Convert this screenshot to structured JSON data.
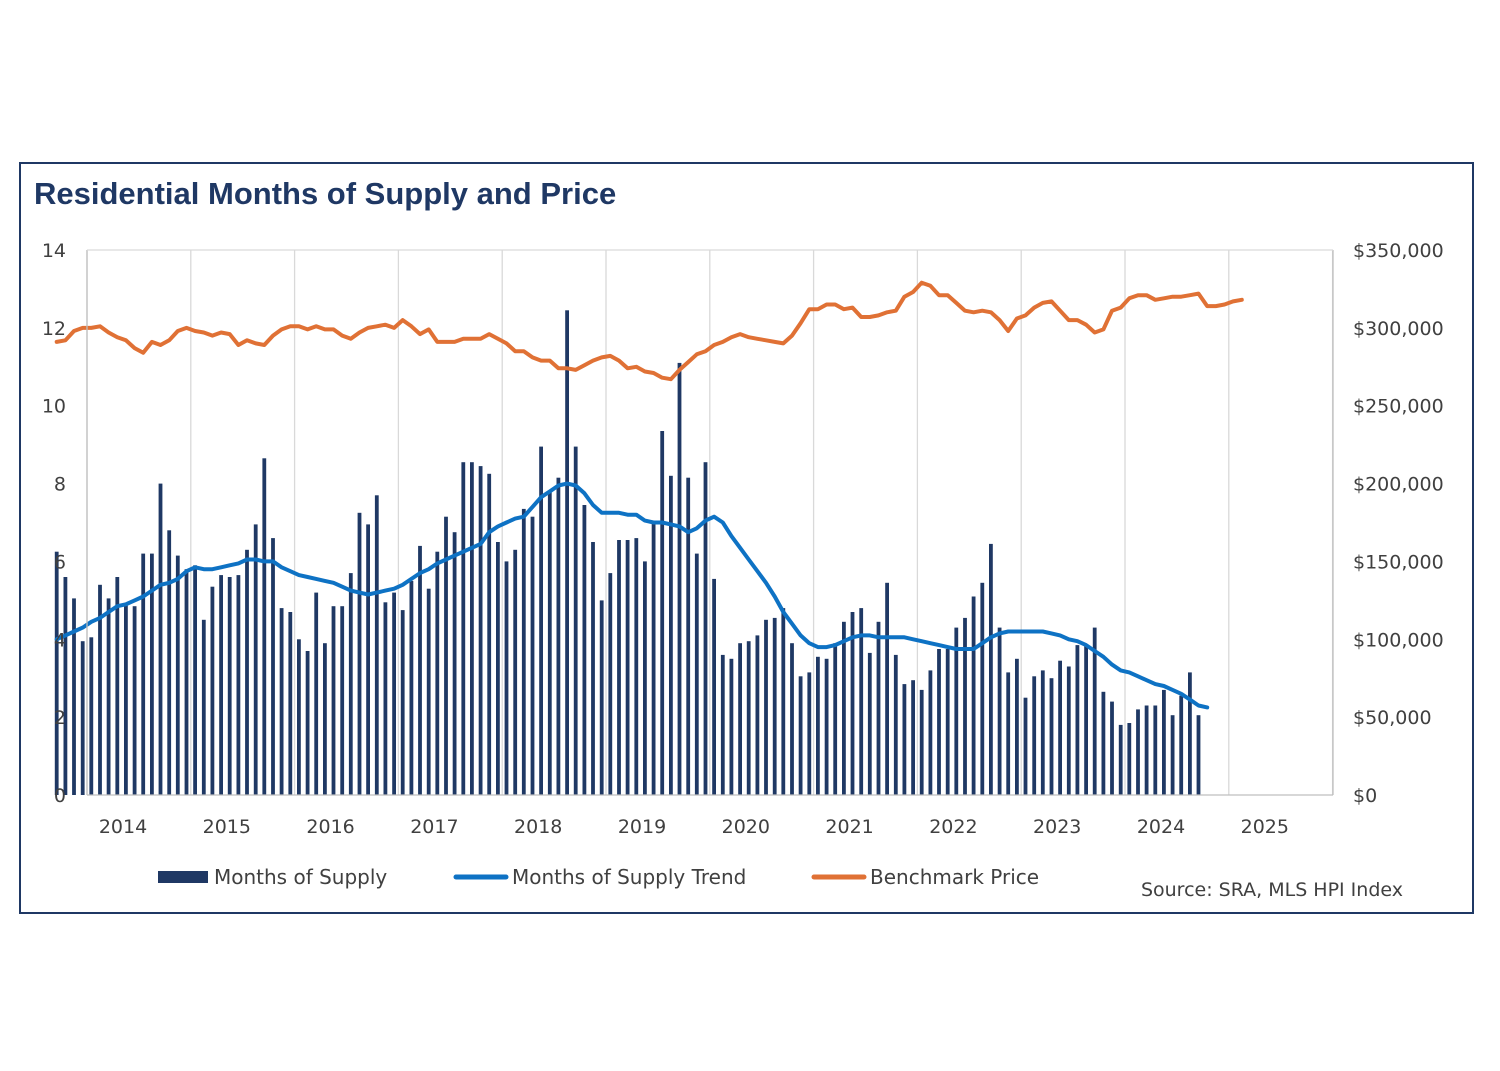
{
  "chart_data": {
    "type": "bar+line",
    "title": "Residential Months of Supply and Price",
    "source": "Source: SRA, MLS HPI Index",
    "start": {
      "year": 2013,
      "month": 9
    },
    "y_left": {
      "min": 0,
      "max": 14,
      "ticks": [
        "0",
        "2",
        "4",
        "6",
        "8",
        "10",
        "12",
        "14"
      ]
    },
    "y_right": {
      "min": 0,
      "max": 350000,
      "ticks": [
        "$0",
        "$50,000",
        "$100,000",
        "$150,000",
        "$200,000",
        "$250,000",
        "$300,000",
        "$350,000"
      ]
    },
    "x_ticks": [
      "2014",
      "2015",
      "2016",
      "2017",
      "2018",
      "2019",
      "2020",
      "2021",
      "2022",
      "2023",
      "2024",
      "2025"
    ],
    "legend": [
      "Months of Supply",
      "Months of Supply Trend",
      "Benchmark Price"
    ],
    "colors": {
      "bars": "#1f3864",
      "trend": "#0e72c4",
      "price": "#e07135",
      "grid": "#d9d9d9",
      "axis": "#bfbfbf"
    },
    "series": [
      {
        "name": "Months of Supply",
        "type": "bar",
        "values": [
          6.25,
          5.6,
          5.05,
          3.95,
          4.05,
          5.4,
          5.05,
          5.6,
          4.9,
          4.85,
          6.2,
          6.2,
          8.0,
          6.8,
          6.15,
          5.8,
          5.9,
          4.5,
          5.35,
          5.65,
          5.6,
          5.65,
          6.3,
          6.95,
          8.65,
          6.6,
          4.8,
          4.7,
          4.0,
          3.7,
          5.2,
          3.9,
          4.85,
          4.85,
          5.7,
          7.25,
          6.95,
          7.7,
          4.95,
          5.2,
          4.75,
          5.5,
          6.4,
          5.3,
          6.25,
          7.15,
          6.75,
          8.55,
          8.55,
          8.45,
          8.25,
          6.5,
          6.0,
          6.3,
          7.35,
          7.15,
          8.95,
          7.8,
          8.15,
          12.45,
          8.95,
          7.45,
          6.5,
          5.0,
          5.7,
          6.55,
          6.55,
          6.6,
          6.0,
          7.0,
          9.35,
          8.2,
          11.1,
          8.15,
          6.2,
          8.55,
          5.55,
          3.6,
          3.5,
          3.9,
          3.95,
          4.1,
          4.5,
          4.55,
          4.8,
          3.9,
          3.05,
          3.15,
          3.55,
          3.5,
          3.9,
          4.45,
          4.7,
          4.8,
          3.65,
          4.45,
          5.45,
          3.6,
          2.85,
          2.95,
          2.7,
          3.2,
          3.75,
          3.75,
          4.3,
          4.55,
          5.1,
          5.45,
          6.45,
          4.3,
          3.15,
          3.5,
          2.5,
          3.05,
          3.2,
          3.0,
          3.45,
          3.3,
          3.85,
          3.85,
          4.3,
          2.65,
          2.4,
          1.8,
          1.85,
          2.2,
          2.3,
          2.3,
          2.7,
          2.05,
          2.55,
          3.15,
          2.05
        ]
      },
      {
        "name": "Months of Supply Trend",
        "type": "line",
        "values": [
          4.0,
          4.1,
          4.2,
          4.3,
          4.45,
          4.55,
          4.7,
          4.85,
          4.9,
          5.0,
          5.1,
          5.25,
          5.4,
          5.45,
          5.55,
          5.75,
          5.85,
          5.8,
          5.8,
          5.85,
          5.9,
          5.95,
          6.05,
          6.05,
          6.0,
          6.0,
          5.85,
          5.75,
          5.65,
          5.6,
          5.55,
          5.5,
          5.45,
          5.35,
          5.25,
          5.2,
          5.15,
          5.2,
          5.25,
          5.3,
          5.4,
          5.55,
          5.7,
          5.8,
          5.95,
          6.05,
          6.15,
          6.25,
          6.35,
          6.45,
          6.75,
          6.9,
          7.0,
          7.1,
          7.15,
          7.4,
          7.65,
          7.8,
          7.95,
          8.0,
          7.95,
          7.75,
          7.45,
          7.25,
          7.25,
          7.25,
          7.2,
          7.2,
          7.05,
          7.0,
          7.0,
          6.95,
          6.9,
          6.75,
          6.85,
          7.05,
          7.15,
          7.0,
          6.65,
          6.35,
          6.05,
          5.75,
          5.45,
          5.1,
          4.7,
          4.4,
          4.1,
          3.9,
          3.8,
          3.8,
          3.85,
          3.95,
          4.05,
          4.1,
          4.1,
          4.05,
          4.05,
          4.05,
          4.05,
          4.0,
          3.95,
          3.9,
          3.85,
          3.8,
          3.75,
          3.75,
          3.75,
          3.9,
          4.05,
          4.15,
          4.2,
          4.2,
          4.2,
          4.2,
          4.2,
          4.15,
          4.1,
          4.0,
          3.95,
          3.85,
          3.7,
          3.55,
          3.35,
          3.2,
          3.15,
          3.05,
          2.95,
          2.85,
          2.8,
          2.7,
          2.6,
          2.45,
          2.3,
          2.25
        ]
      },
      {
        "name": "Benchmark Price",
        "type": "line",
        "values": [
          291000,
          292000,
          298000,
          300000,
          300000,
          301000,
          297000,
          294000,
          292000,
          287000,
          284000,
          291000,
          289000,
          292000,
          298000,
          300000,
          298000,
          297000,
          295000,
          297000,
          296000,
          289000,
          292000,
          290000,
          289000,
          295000,
          299000,
          301000,
          301000,
          299000,
          301000,
          299000,
          299000,
          295000,
          293000,
          297000,
          300000,
          301000,
          302000,
          300000,
          305000,
          301000,
          296000,
          299000,
          291000,
          291000,
          291000,
          293000,
          293000,
          293000,
          296000,
          293000,
          290000,
          285000,
          285000,
          281000,
          279000,
          279000,
          274000,
          274000,
          273000,
          276000,
          279000,
          281000,
          282000,
          279000,
          274000,
          275000,
          272000,
          271000,
          268000,
          267000,
          273000,
          278000,
          283000,
          285000,
          289000,
          291000,
          294000,
          296000,
          294000,
          293000,
          292000,
          291000,
          290000,
          295000,
          303000,
          312000,
          312000,
          315000,
          315000,
          312000,
          313000,
          307000,
          307000,
          308000,
          310000,
          311000,
          320000,
          323000,
          329000,
          327000,
          321000,
          321000,
          316000,
          311000,
          310000,
          311000,
          310000,
          305000,
          298000,
          306000,
          308000,
          313000,
          316000,
          317000,
          311000,
          305000,
          305000,
          302000,
          297000,
          299000,
          311000,
          313000,
          319000,
          321000,
          321000,
          318000,
          319000,
          320000,
          320000,
          321000,
          322000,
          314000,
          314000,
          315000,
          317000,
          318000
        ]
      }
    ]
  }
}
